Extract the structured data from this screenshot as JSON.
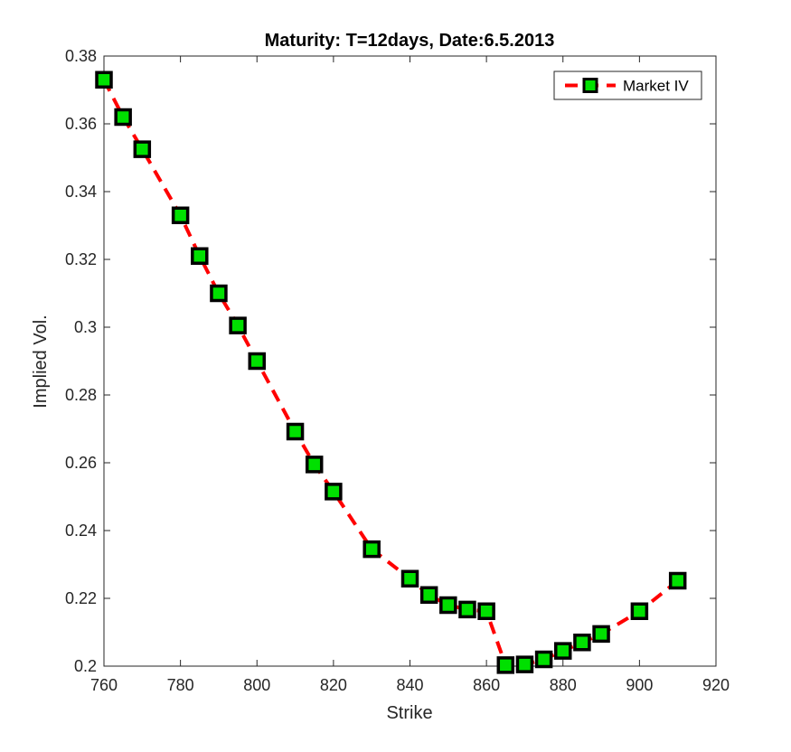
{
  "chart_data": {
    "type": "line",
    "title": "Maturity: T=12days, Date:6.5.2013",
    "xlabel": "Strike",
    "ylabel": "Implied Vol.",
    "xlim": [
      760,
      920
    ],
    "ylim": [
      0.2,
      0.38
    ],
    "xticks": [
      "760",
      "780",
      "800",
      "820",
      "840",
      "860",
      "880",
      "900",
      "920"
    ],
    "yticks": [
      "0.2",
      "0.22",
      "0.24",
      "0.26",
      "0.28",
      "0.3",
      "0.32",
      "0.34",
      "0.36",
      "0.38"
    ],
    "xtick_values": [
      760,
      780,
      800,
      820,
      840,
      860,
      880,
      900,
      920
    ],
    "ytick_values": [
      0.2,
      0.22,
      0.24,
      0.26,
      0.28,
      0.3,
      0.32,
      0.34,
      0.36,
      0.38
    ],
    "grid": false,
    "legend_position": "top-right",
    "series": [
      {
        "name": "Market IV",
        "line_color": "#ff0000",
        "line_style": "dashed",
        "marker": "square",
        "marker_face": "#00e000",
        "marker_edge": "#000000",
        "x": [
          760,
          765,
          770,
          780,
          785,
          790,
          795,
          800,
          810,
          815,
          820,
          830,
          840,
          845,
          850,
          855,
          860,
          865,
          870,
          875,
          880,
          885,
          890,
          900,
          910
        ],
        "y": [
          0.373,
          0.362,
          0.3525,
          0.333,
          0.321,
          0.31,
          0.3005,
          0.29,
          0.2692,
          0.2595,
          0.2515,
          0.2345,
          0.2258,
          0.221,
          0.218,
          0.2167,
          0.2162,
          0.2003,
          0.2005,
          0.202,
          0.2045,
          0.207,
          0.2095,
          0.2162,
          0.2252
        ]
      }
    ]
  }
}
